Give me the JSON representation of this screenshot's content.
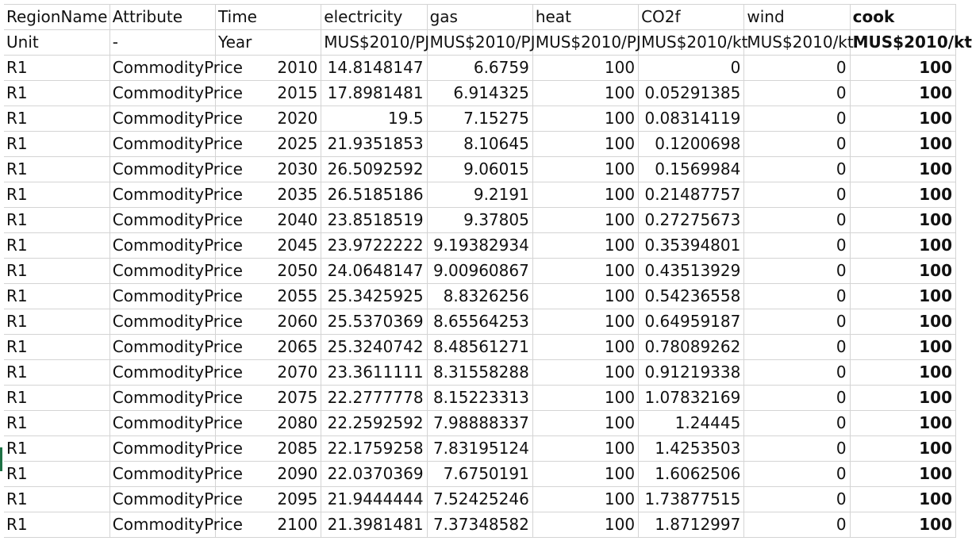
{
  "header": [
    "RegionName",
    "Attribute",
    "Time",
    "electricity",
    "gas",
    "heat",
    "CO2f",
    "wind",
    "cook"
  ],
  "units": [
    "Unit",
    "-",
    "Year",
    "MUS$2010/PJ",
    "MUS$2010/PJ",
    "MUS$2010/PJ",
    "MUS$2010/kt",
    "MUS$2010/kt",
    "MUS$2010/kt"
  ],
  "rows": [
    [
      "R1",
      "CommodityPrice",
      "2010",
      "14.8148147",
      "6.6759",
      "100",
      "0",
      "0",
      "100"
    ],
    [
      "R1",
      "CommodityPrice",
      "2015",
      "17.8981481",
      "6.914325",
      "100",
      "0.05291385",
      "0",
      "100"
    ],
    [
      "R1",
      "CommodityPrice",
      "2020",
      "19.5",
      "7.15275",
      "100",
      "0.08314119",
      "0",
      "100"
    ],
    [
      "R1",
      "CommodityPrice",
      "2025",
      "21.9351853",
      "8.10645",
      "100",
      "0.1200698",
      "0",
      "100"
    ],
    [
      "R1",
      "CommodityPrice",
      "2030",
      "26.5092592",
      "9.06015",
      "100",
      "0.1569984",
      "0",
      "100"
    ],
    [
      "R1",
      "CommodityPrice",
      "2035",
      "26.5185186",
      "9.2191",
      "100",
      "0.21487757",
      "0",
      "100"
    ],
    [
      "R1",
      "CommodityPrice",
      "2040",
      "23.8518519",
      "9.37805",
      "100",
      "0.27275673",
      "0",
      "100"
    ],
    [
      "R1",
      "CommodityPrice",
      "2045",
      "23.9722222",
      "9.19382934",
      "100",
      "0.35394801",
      "0",
      "100"
    ],
    [
      "R1",
      "CommodityPrice",
      "2050",
      "24.0648147",
      "9.00960867",
      "100",
      "0.43513929",
      "0",
      "100"
    ],
    [
      "R1",
      "CommodityPrice",
      "2055",
      "25.3425925",
      "8.8326256",
      "100",
      "0.54236558",
      "0",
      "100"
    ],
    [
      "R1",
      "CommodityPrice",
      "2060",
      "25.5370369",
      "8.65564253",
      "100",
      "0.64959187",
      "0",
      "100"
    ],
    [
      "R1",
      "CommodityPrice",
      "2065",
      "25.3240742",
      "8.48561271",
      "100",
      "0.78089262",
      "0",
      "100"
    ],
    [
      "R1",
      "CommodityPrice",
      "2070",
      "23.3611111",
      "8.31558288",
      "100",
      "0.91219338",
      "0",
      "100"
    ],
    [
      "R1",
      "CommodityPrice",
      "2075",
      "22.2777778",
      "8.15223313",
      "100",
      "1.07832169",
      "0",
      "100"
    ],
    [
      "R1",
      "CommodityPrice",
      "2080",
      "22.2592592",
      "7.98888337",
      "100",
      "1.24445",
      "0",
      "100"
    ],
    [
      "R1",
      "CommodityPrice",
      "2085",
      "22.1759258",
      "7.83195124",
      "100",
      "1.4253503",
      "0",
      "100"
    ],
    [
      "R1",
      "CommodityPrice",
      "2090",
      "22.0370369",
      "7.6750191",
      "100",
      "1.6062506",
      "0",
      "100"
    ],
    [
      "R1",
      "CommodityPrice",
      "2095",
      "21.9444444",
      "7.52425246",
      "100",
      "1.73877515",
      "0",
      "100"
    ],
    [
      "R1",
      "CommodityPrice",
      "2100",
      "21.3981481",
      "7.37348582",
      "100",
      "1.8712997",
      "0",
      "100"
    ]
  ],
  "colors": {
    "gridline": "#d4d4d4",
    "selection_marker": "#1e7145"
  }
}
